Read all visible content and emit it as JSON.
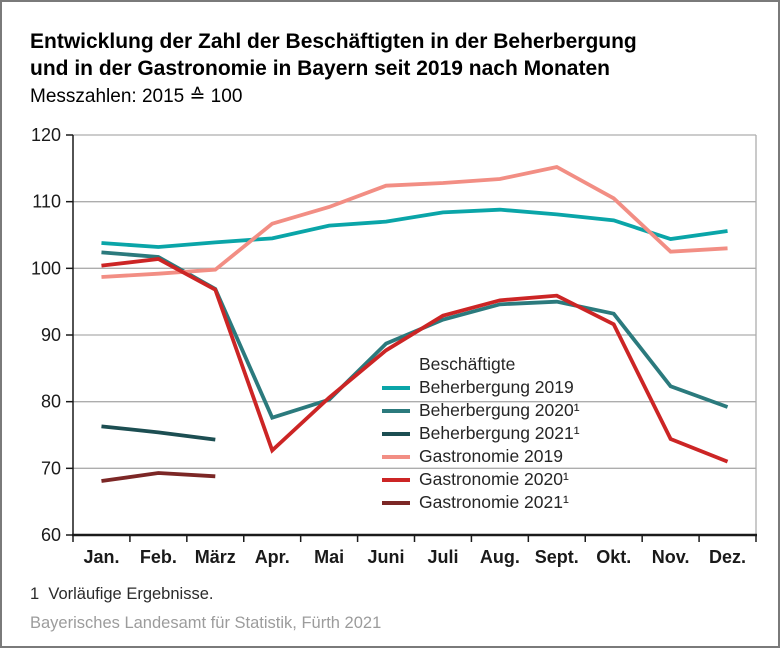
{
  "chart_data": {
    "type": "line",
    "title": "Entwicklung der Zahl der Beschäftigten in der Beherbergung und in der Gastronomie in Bayern seit 2019 nach Monaten",
    "title_lines": [
      "Entwicklung der Zahl der Beschäftigten in der Beherbergung",
      "und in der Gastronomie in Bayern seit 2019 nach Monaten"
    ],
    "subtitle": "Messzahlen: 2015 ≙ 100",
    "categories": [
      "Jan.",
      "Feb.",
      "März",
      "Apr.",
      "Mai",
      "Juni",
      "Juli",
      "Aug.",
      "Sept.",
      "Okt.",
      "Nov.",
      "Dez."
    ],
    "ylim": [
      60,
      120
    ],
    "yticks": [
      120,
      110,
      100,
      90,
      80,
      70,
      60
    ],
    "grid": true,
    "legend_title": "Beschäftigte",
    "legend_position": "inside-center-right",
    "colors": {
      "grid": "#adadad",
      "frame": "#adadad",
      "axis": "#1a1a1a"
    },
    "series": [
      {
        "name": "Beherbergung 2019",
        "color": "#0AA5A8",
        "values": [
          103.8,
          103.2,
          103.9,
          104.5,
          106.4,
          107.0,
          108.4,
          108.8,
          108.1,
          107.2,
          104.4,
          105.6
        ]
      },
      {
        "name": "Beherbergung 2020¹",
        "color": "#2B7A7D",
        "values": [
          102.4,
          101.7,
          96.9,
          77.6,
          80.3,
          88.7,
          92.3,
          94.6,
          95.0,
          93.2,
          82.3,
          79.2
        ]
      },
      {
        "name": "Beherbergung 2021¹",
        "color": "#1C4E52",
        "values": [
          76.3,
          75.4,
          74.3
        ]
      },
      {
        "name": "Gastronomie 2019",
        "color": "#F28E84",
        "values": [
          98.7,
          99.2,
          99.8,
          106.7,
          109.2,
          112.4,
          112.8,
          113.4,
          115.2,
          110.5,
          102.5,
          103.0
        ]
      },
      {
        "name": "Gastronomie 2020¹",
        "color": "#CC2525",
        "values": [
          100.4,
          101.4,
          96.8,
          72.7,
          80.6,
          87.7,
          92.9,
          95.2,
          95.9,
          91.6,
          74.4,
          71.0
        ]
      },
      {
        "name": "Gastronomie 2021¹",
        "color": "#7C2726",
        "values": [
          68.1,
          69.3,
          68.8
        ]
      }
    ]
  },
  "footer": {
    "footnote": "1  Vorläufige Ergebnisse.",
    "source": "Bayerisches Landesamt für Statistik, Fürth 2021"
  }
}
